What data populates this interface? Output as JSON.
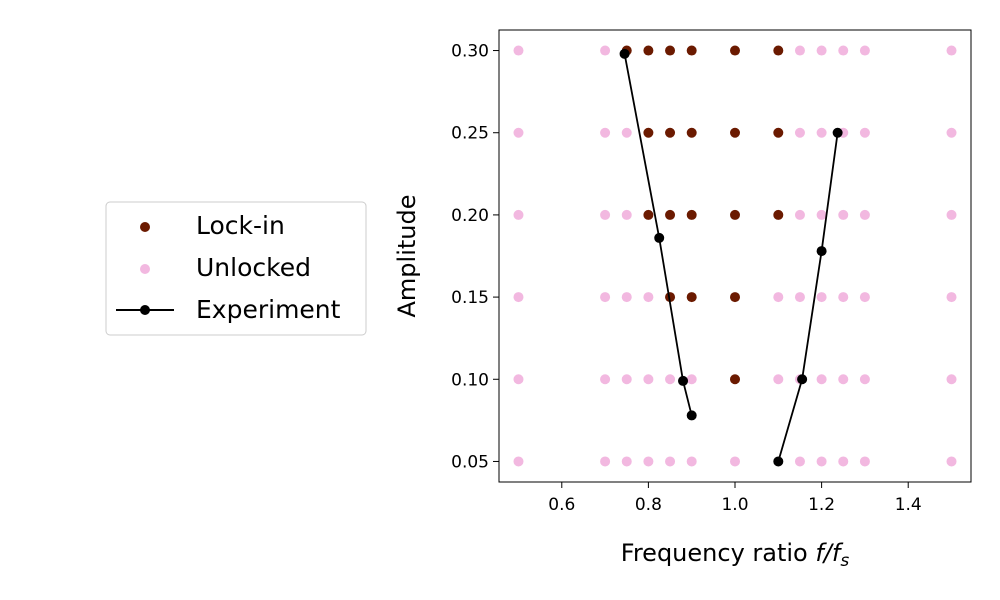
{
  "chart_data": {
    "type": "scatter",
    "xlabel_main": "Frequency ratio ",
    "xlabel_math": "f/f",
    "xlabel_sub": "s",
    "ylabel": "Amplitude",
    "xlim": [
      0.455,
      1.545
    ],
    "ylim": [
      0.0375,
      0.3125
    ],
    "x_ticks": [
      0.6,
      0.8,
      1.0,
      1.2,
      1.4
    ],
    "x_tick_labels": [
      "0.6",
      "0.8",
      "1.0",
      "1.2",
      "1.4"
    ],
    "y_ticks": [
      0.05,
      0.1,
      0.15,
      0.2,
      0.25,
      0.3
    ],
    "y_tick_labels": [
      "0.05",
      "0.10",
      "0.15",
      "0.20",
      "0.25",
      "0.30"
    ],
    "colors": {
      "lock_in": "#6b1a00",
      "unlocked": "#f2b8e0",
      "experiment": "#000000"
    },
    "series": [
      {
        "name": "Unlocked",
        "kind": "scatter",
        "points": [
          [
            0.5,
            0.05
          ],
          [
            0.7,
            0.05
          ],
          [
            0.75,
            0.05
          ],
          [
            0.8,
            0.05
          ],
          [
            0.85,
            0.05
          ],
          [
            0.9,
            0.05
          ],
          [
            1.0,
            0.05
          ],
          [
            1.15,
            0.05
          ],
          [
            1.2,
            0.05
          ],
          [
            1.25,
            0.05
          ],
          [
            1.3,
            0.05
          ],
          [
            1.5,
            0.05
          ],
          [
            0.5,
            0.1
          ],
          [
            0.7,
            0.1
          ],
          [
            0.75,
            0.1
          ],
          [
            0.8,
            0.1
          ],
          [
            0.85,
            0.1
          ],
          [
            0.9,
            0.1
          ],
          [
            1.1,
            0.1
          ],
          [
            1.15,
            0.1
          ],
          [
            1.2,
            0.1
          ],
          [
            1.25,
            0.1
          ],
          [
            1.3,
            0.1
          ],
          [
            1.5,
            0.1
          ],
          [
            0.5,
            0.15
          ],
          [
            0.7,
            0.15
          ],
          [
            0.75,
            0.15
          ],
          [
            0.8,
            0.15
          ],
          [
            1.1,
            0.15
          ],
          [
            1.15,
            0.15
          ],
          [
            1.2,
            0.15
          ],
          [
            1.25,
            0.15
          ],
          [
            1.3,
            0.15
          ],
          [
            1.5,
            0.15
          ],
          [
            0.5,
            0.2
          ],
          [
            0.7,
            0.2
          ],
          [
            0.75,
            0.2
          ],
          [
            1.15,
            0.2
          ],
          [
            1.2,
            0.2
          ],
          [
            1.25,
            0.2
          ],
          [
            1.3,
            0.2
          ],
          [
            1.5,
            0.2
          ],
          [
            0.5,
            0.25
          ],
          [
            0.7,
            0.25
          ],
          [
            0.75,
            0.25
          ],
          [
            1.15,
            0.25
          ],
          [
            1.2,
            0.25
          ],
          [
            1.25,
            0.25
          ],
          [
            1.3,
            0.25
          ],
          [
            1.5,
            0.25
          ],
          [
            0.5,
            0.3
          ],
          [
            0.7,
            0.3
          ],
          [
            1.15,
            0.3
          ],
          [
            1.2,
            0.3
          ],
          [
            1.25,
            0.3
          ],
          [
            1.3,
            0.3
          ],
          [
            1.5,
            0.3
          ]
        ]
      },
      {
        "name": "Lock-in",
        "kind": "scatter",
        "points": [
          [
            1.0,
            0.1
          ],
          [
            0.85,
            0.15
          ],
          [
            0.9,
            0.15
          ],
          [
            1.0,
            0.15
          ],
          [
            0.8,
            0.2
          ],
          [
            0.85,
            0.2
          ],
          [
            0.9,
            0.2
          ],
          [
            1.0,
            0.2
          ],
          [
            1.1,
            0.2
          ],
          [
            0.8,
            0.25
          ],
          [
            0.85,
            0.25
          ],
          [
            0.9,
            0.25
          ],
          [
            1.0,
            0.25
          ],
          [
            1.1,
            0.25
          ],
          [
            0.75,
            0.3
          ],
          [
            0.8,
            0.3
          ],
          [
            0.85,
            0.3
          ],
          [
            0.9,
            0.3
          ],
          [
            1.0,
            0.3
          ],
          [
            1.1,
            0.3
          ]
        ]
      },
      {
        "name": "Experiment",
        "kind": "line",
        "segments": [
          [
            [
              0.745,
              0.298
            ],
            [
              0.825,
              0.186
            ],
            [
              0.88,
              0.099
            ],
            [
              0.9,
              0.078
            ]
          ],
          [
            [
              1.1,
              0.05
            ],
            [
              1.155,
              0.1
            ],
            [
              1.2,
              0.178
            ],
            [
              1.237,
              0.25
            ]
          ]
        ]
      }
    ],
    "legend": {
      "placement": "left",
      "entries": [
        {
          "label": "Lock-in",
          "marker": "dot",
          "color_key": "lock_in"
        },
        {
          "label": "Unlocked",
          "marker": "dot",
          "color_key": "unlocked"
        },
        {
          "label": "Experiment",
          "marker": "line-dot",
          "color_key": "experiment"
        }
      ]
    },
    "grid": false
  }
}
